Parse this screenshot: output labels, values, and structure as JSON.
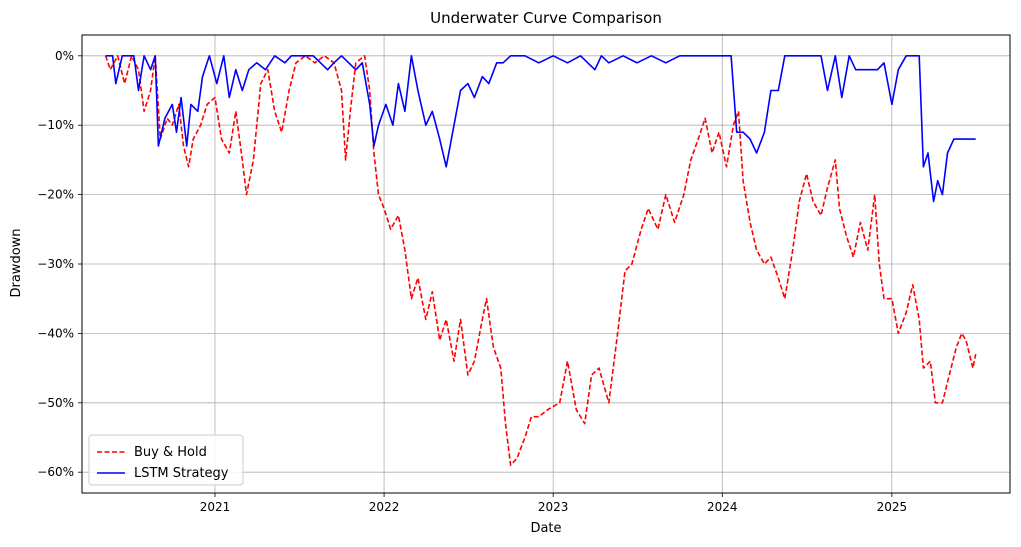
{
  "chart_data": {
    "type": "line",
    "title": "Underwater Curve Comparison",
    "xlabel": "Date",
    "ylabel": "Drawdown",
    "xlim": [
      "2020-03-20",
      "2025-09-13"
    ],
    "ylim": [
      -0.63,
      0.03
    ],
    "x_ticks": [
      {
        "date": "2021-01-01",
        "label": "2021"
      },
      {
        "date": "2022-01-01",
        "label": "2022"
      },
      {
        "date": "2023-01-01",
        "label": "2023"
      },
      {
        "date": "2024-01-01",
        "label": "2024"
      },
      {
        "date": "2025-01-01",
        "label": "2025"
      }
    ],
    "y_ticks": [
      {
        "value": 0,
        "label": "0%"
      },
      {
        "value": -0.1,
        "label": "−10%"
      },
      {
        "value": -0.2,
        "label": "−20%"
      },
      {
        "value": -0.3,
        "label": "−30%"
      },
      {
        "value": -0.4,
        "label": "−40%"
      },
      {
        "value": -0.5,
        "label": "−50%"
      },
      {
        "value": -0.6,
        "label": "−60%"
      }
    ],
    "grid": true,
    "legend_position": "lower-left",
    "series": [
      {
        "name": "Buy & Hold",
        "color": "#ff0000",
        "style": "dashed",
        "points": [
          [
            "2020-05-10",
            0
          ],
          [
            "2020-05-20",
            -0.02
          ],
          [
            "2020-06-05",
            0
          ],
          [
            "2020-06-20",
            -0.04
          ],
          [
            "2020-07-05",
            0
          ],
          [
            "2020-07-20",
            -0.02
          ],
          [
            "2020-08-01",
            -0.08
          ],
          [
            "2020-08-15",
            -0.05
          ],
          [
            "2020-08-25",
            0
          ],
          [
            "2020-09-05",
            -0.12
          ],
          [
            "2020-09-20",
            -0.09
          ],
          [
            "2020-10-01",
            -0.1
          ],
          [
            "2020-10-15",
            -0.07
          ],
          [
            "2020-10-25",
            -0.13
          ],
          [
            "2020-11-05",
            -0.16
          ],
          [
            "2020-11-15",
            -0.12
          ],
          [
            "2020-12-01",
            -0.1
          ],
          [
            "2020-12-15",
            -0.07
          ],
          [
            "2021-01-01",
            -0.06
          ],
          [
            "2021-01-15",
            -0.12
          ],
          [
            "2021-02-01",
            -0.14
          ],
          [
            "2021-02-15",
            -0.08
          ],
          [
            "2021-03-01",
            -0.15
          ],
          [
            "2021-03-10",
            -0.2
          ],
          [
            "2021-03-25",
            -0.15
          ],
          [
            "2021-04-10",
            -0.04
          ],
          [
            "2021-04-25",
            -0.02
          ],
          [
            "2021-05-10",
            -0.08
          ],
          [
            "2021-05-25",
            -0.11
          ],
          [
            "2021-06-10",
            -0.05
          ],
          [
            "2021-06-25",
            -0.01
          ],
          [
            "2021-07-15",
            0
          ],
          [
            "2021-08-05",
            -0.01
          ],
          [
            "2021-08-25",
            0
          ],
          [
            "2021-09-15",
            -0.01
          ],
          [
            "2021-10-01",
            -0.05
          ],
          [
            "2021-10-10",
            -0.15
          ],
          [
            "2021-10-20",
            -0.08
          ],
          [
            "2021-11-01",
            -0.01
          ],
          [
            "2021-11-20",
            0
          ],
          [
            "2021-12-01",
            -0.05
          ],
          [
            "2021-12-10",
            -0.14
          ],
          [
            "2021-12-20",
            -0.2
          ],
          [
            "2022-01-01",
            -0.22
          ],
          [
            "2022-01-15",
            -0.25
          ],
          [
            "2022-02-01",
            -0.23
          ],
          [
            "2022-02-15",
            -0.28
          ],
          [
            "2022-03-01",
            -0.35
          ],
          [
            "2022-03-15",
            -0.32
          ],
          [
            "2022-04-01",
            -0.38
          ],
          [
            "2022-04-15",
            -0.34
          ],
          [
            "2022-05-01",
            -0.41
          ],
          [
            "2022-05-15",
            -0.38
          ],
          [
            "2022-06-01",
            -0.44
          ],
          [
            "2022-06-15",
            -0.38
          ],
          [
            "2022-07-01",
            -0.46
          ],
          [
            "2022-07-15",
            -0.44
          ],
          [
            "2022-08-01",
            -0.38
          ],
          [
            "2022-08-10",
            -0.35
          ],
          [
            "2022-08-25",
            -0.42
          ],
          [
            "2022-09-10",
            -0.45
          ],
          [
            "2022-09-20",
            -0.53
          ],
          [
            "2022-10-01",
            -0.59
          ],
          [
            "2022-10-15",
            -0.58
          ],
          [
            "2022-11-01",
            -0.55
          ],
          [
            "2022-11-15",
            -0.52
          ],
          [
            "2022-12-01",
            -0.52
          ],
          [
            "2022-12-20",
            -0.51
          ],
          [
            "2023-01-15",
            -0.5
          ],
          [
            "2023-02-01",
            -0.44
          ],
          [
            "2023-02-20",
            -0.51
          ],
          [
            "2023-03-10",
            -0.53
          ],
          [
            "2023-03-25",
            -0.46
          ],
          [
            "2023-04-10",
            -0.45
          ],
          [
            "2023-05-01",
            -0.5
          ],
          [
            "2023-05-20",
            -0.4
          ],
          [
            "2023-06-05",
            -0.31
          ],
          [
            "2023-06-20",
            -0.3
          ],
          [
            "2023-07-10",
            -0.25
          ],
          [
            "2023-07-25",
            -0.22
          ],
          [
            "2023-08-15",
            -0.25
          ],
          [
            "2023-09-01",
            -0.2
          ],
          [
            "2023-09-20",
            -0.24
          ],
          [
            "2023-10-10",
            -0.2
          ],
          [
            "2023-10-25",
            -0.15
          ],
          [
            "2023-11-10",
            -0.12
          ],
          [
            "2023-11-25",
            -0.09
          ],
          [
            "2023-12-10",
            -0.14
          ],
          [
            "2023-12-25",
            -0.11
          ],
          [
            "2024-01-10",
            -0.16
          ],
          [
            "2024-01-25",
            -0.1
          ],
          [
            "2024-02-05",
            -0.08
          ],
          [
            "2024-02-15",
            -0.18
          ],
          [
            "2024-03-01",
            -0.24
          ],
          [
            "2024-03-15",
            -0.28
          ],
          [
            "2024-04-01",
            -0.3
          ],
          [
            "2024-04-15",
            -0.29
          ],
          [
            "2024-05-01",
            -0.32
          ],
          [
            "2024-05-15",
            -0.35
          ],
          [
            "2024-06-01",
            -0.28
          ],
          [
            "2024-06-15",
            -0.21
          ],
          [
            "2024-07-01",
            -0.17
          ],
          [
            "2024-07-15",
            -0.21
          ],
          [
            "2024-08-01",
            -0.23
          ],
          [
            "2024-08-15",
            -0.19
          ],
          [
            "2024-09-01",
            -0.15
          ],
          [
            "2024-09-10",
            -0.22
          ],
          [
            "2024-09-25",
            -0.26
          ],
          [
            "2024-10-10",
            -0.29
          ],
          [
            "2024-10-25",
            -0.24
          ],
          [
            "2024-11-10",
            -0.28
          ],
          [
            "2024-11-25",
            -0.2
          ],
          [
            "2024-12-05",
            -0.3
          ],
          [
            "2024-12-15",
            -0.35
          ],
          [
            "2025-01-01",
            -0.35
          ],
          [
            "2025-01-15",
            -0.4
          ],
          [
            "2025-02-01",
            -0.37
          ],
          [
            "2025-02-15",
            -0.33
          ],
          [
            "2025-03-01",
            -0.38
          ],
          [
            "2025-03-10",
            -0.45
          ],
          [
            "2025-03-25",
            -0.44
          ],
          [
            "2025-04-05",
            -0.5
          ],
          [
            "2025-04-20",
            -0.5
          ],
          [
            "2025-05-05",
            -0.46
          ],
          [
            "2025-05-20",
            -0.42
          ],
          [
            "2025-06-01",
            -0.4
          ],
          [
            "2025-06-10",
            -0.41
          ],
          [
            "2025-06-25",
            -0.45
          ],
          [
            "2025-07-01",
            -0.43
          ]
        ]
      },
      {
        "name": "LSTM Strategy",
        "color": "#0000ff",
        "style": "solid",
        "points": [
          [
            "2020-05-10",
            0
          ],
          [
            "2020-05-25",
            0
          ],
          [
            "2020-06-01",
            -0.04
          ],
          [
            "2020-06-15",
            0
          ],
          [
            "2020-07-10",
            0
          ],
          [
            "2020-07-20",
            -0.05
          ],
          [
            "2020-08-01",
            0
          ],
          [
            "2020-08-15",
            -0.02
          ],
          [
            "2020-08-25",
            0
          ],
          [
            "2020-09-01",
            -0.13
          ],
          [
            "2020-09-15",
            -0.09
          ],
          [
            "2020-10-01",
            -0.07
          ],
          [
            "2020-10-10",
            -0.11
          ],
          [
            "2020-10-20",
            -0.06
          ],
          [
            "2020-11-01",
            -0.13
          ],
          [
            "2020-11-10",
            -0.07
          ],
          [
            "2020-11-25",
            -0.08
          ],
          [
            "2020-12-05",
            -0.03
          ],
          [
            "2020-12-20",
            0
          ],
          [
            "2021-01-05",
            -0.04
          ],
          [
            "2021-01-20",
            0
          ],
          [
            "2021-02-01",
            -0.06
          ],
          [
            "2021-02-15",
            -0.02
          ],
          [
            "2021-03-01",
            -0.05
          ],
          [
            "2021-03-15",
            -0.02
          ],
          [
            "2021-04-01",
            -0.01
          ],
          [
            "2021-04-20",
            -0.02
          ],
          [
            "2021-05-10",
            0
          ],
          [
            "2021-06-01",
            -0.01
          ],
          [
            "2021-06-15",
            0
          ],
          [
            "2021-08-01",
            0
          ],
          [
            "2021-09-01",
            -0.02
          ],
          [
            "2021-09-15",
            -0.01
          ],
          [
            "2021-10-01",
            0
          ],
          [
            "2021-11-01",
            -0.02
          ],
          [
            "2021-11-15",
            -0.01
          ],
          [
            "2021-12-01",
            -0.07
          ],
          [
            "2021-12-10",
            -0.13
          ],
          [
            "2021-12-20",
            -0.1
          ],
          [
            "2022-01-05",
            -0.07
          ],
          [
            "2022-01-20",
            -0.1
          ],
          [
            "2022-02-01",
            -0.04
          ],
          [
            "2022-02-15",
            -0.08
          ],
          [
            "2022-03-01",
            0
          ],
          [
            "2022-03-15",
            -0.05
          ],
          [
            "2022-04-01",
            -0.1
          ],
          [
            "2022-04-15",
            -0.08
          ],
          [
            "2022-05-01",
            -0.12
          ],
          [
            "2022-05-15",
            -0.16
          ],
          [
            "2022-06-01",
            -0.1
          ],
          [
            "2022-06-15",
            -0.05
          ],
          [
            "2022-07-01",
            -0.04
          ],
          [
            "2022-07-15",
            -0.06
          ],
          [
            "2022-08-01",
            -0.03
          ],
          [
            "2022-08-15",
            -0.04
          ],
          [
            "2022-09-01",
            -0.01
          ],
          [
            "2022-09-15",
            -0.01
          ],
          [
            "2022-10-01",
            0
          ],
          [
            "2022-11-01",
            0
          ],
          [
            "2022-12-01",
            -0.01
          ],
          [
            "2023-01-01",
            0
          ],
          [
            "2023-02-01",
            -0.01
          ],
          [
            "2023-03-01",
            0
          ],
          [
            "2023-04-01",
            -0.02
          ],
          [
            "2023-04-15",
            0
          ],
          [
            "2023-05-01",
            -0.01
          ],
          [
            "2023-06-01",
            0
          ],
          [
            "2023-07-01",
            -0.01
          ],
          [
            "2023-08-01",
            0
          ],
          [
            "2023-09-01",
            -0.01
          ],
          [
            "2023-10-01",
            0
          ],
          [
            "2023-11-01",
            0
          ],
          [
            "2023-12-01",
            0
          ],
          [
            "2024-01-01",
            0
          ],
          [
            "2024-01-20",
            0
          ],
          [
            "2024-02-01",
            -0.11
          ],
          [
            "2024-02-15",
            -0.11
          ],
          [
            "2024-03-01",
            -0.12
          ],
          [
            "2024-03-15",
            -0.14
          ],
          [
            "2024-04-01",
            -0.11
          ],
          [
            "2024-04-15",
            -0.05
          ],
          [
            "2024-05-01",
            -0.05
          ],
          [
            "2024-05-15",
            0
          ],
          [
            "2024-06-01",
            0
          ],
          [
            "2024-07-01",
            0
          ],
          [
            "2024-08-01",
            0
          ],
          [
            "2024-08-15",
            -0.05
          ],
          [
            "2024-09-01",
            0
          ],
          [
            "2024-09-15",
            -0.06
          ],
          [
            "2024-10-01",
            0
          ],
          [
            "2024-10-15",
            -0.02
          ],
          [
            "2024-11-01",
            -0.02
          ],
          [
            "2024-12-01",
            -0.02
          ],
          [
            "2024-12-15",
            -0.01
          ],
          [
            "2025-01-01",
            -0.07
          ],
          [
            "2025-01-15",
            -0.02
          ],
          [
            "2025-02-01",
            0
          ],
          [
            "2025-02-15",
            0
          ],
          [
            "2025-03-01",
            0
          ],
          [
            "2025-03-10",
            -0.16
          ],
          [
            "2025-03-20",
            -0.14
          ],
          [
            "2025-04-01",
            -0.21
          ],
          [
            "2025-04-10",
            -0.18
          ],
          [
            "2025-04-20",
            -0.2
          ],
          [
            "2025-05-01",
            -0.14
          ],
          [
            "2025-05-15",
            -0.12
          ],
          [
            "2025-06-01",
            -0.12
          ],
          [
            "2025-07-01",
            -0.12
          ]
        ]
      }
    ]
  }
}
